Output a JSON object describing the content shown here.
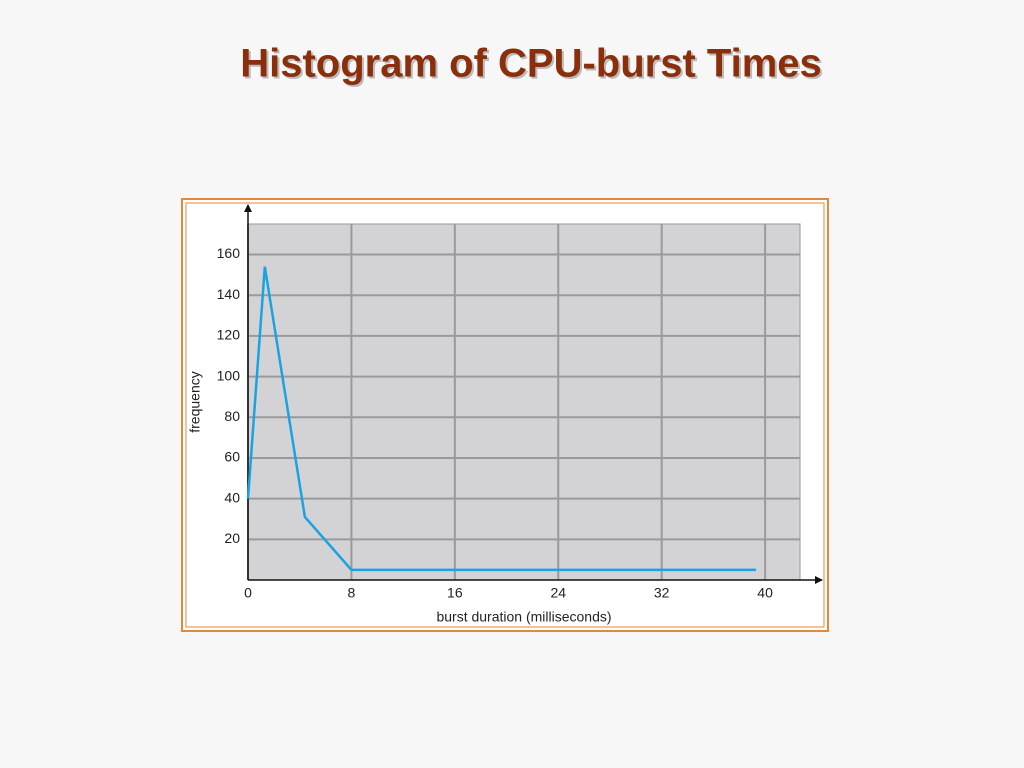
{
  "chart_data": {
    "type": "line",
    "title": "Histogram of CPU-burst Times",
    "x_label": "burst duration (milliseconds)",
    "y_label": "frequency",
    "x": [
      0,
      1.3,
      4.4,
      8,
      39.3
    ],
    "values": [
      40,
      154,
      31,
      5,
      5
    ],
    "color": "#1aa3e0",
    "xlim": [
      0,
      42.7
    ],
    "ylim": [
      0,
      175
    ],
    "xticks": [
      0,
      8,
      16,
      24,
      32,
      40
    ],
    "yticks": [
      20,
      40,
      60,
      80,
      100,
      120,
      140,
      160
    ],
    "grid": true
  }
}
